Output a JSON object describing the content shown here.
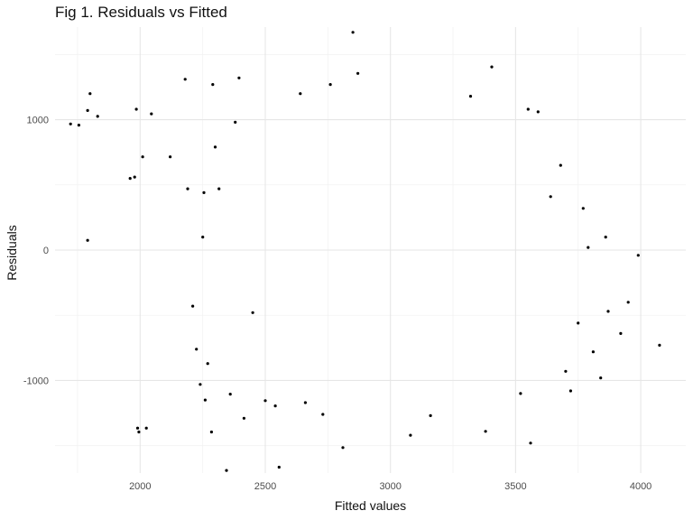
{
  "chart_data": {
    "type": "scatter",
    "title": "Fig 1. Residuals vs Fitted",
    "xlabel": "Fitted values",
    "ylabel": "Residuals",
    "xlim": [
      1660,
      4180
    ],
    "ylim": [
      -1710,
      1710
    ],
    "xticks": [
      2000,
      2500,
      3000,
      3500,
      4000
    ],
    "yticks": [
      -1000,
      0,
      1000
    ],
    "xtick_labels": [
      "2000",
      "2500",
      "3000",
      "3500",
      "4000"
    ],
    "ytick_labels": [
      "-1000",
      "0",
      "1000"
    ],
    "grid": true,
    "point_color": "#000000",
    "points": [
      [
        1722,
        967
      ],
      [
        1755,
        958
      ],
      [
        1790,
        1070
      ],
      [
        1800,
        1200
      ],
      [
        1830,
        1025
      ],
      [
        1790,
        75
      ],
      [
        1960,
        550
      ],
      [
        1978,
        560
      ],
      [
        1985,
        1080
      ],
      [
        2010,
        715
      ],
      [
        2045,
        1045
      ],
      [
        2120,
        715
      ],
      [
        2180,
        1310
      ],
      [
        2190,
        470
      ],
      [
        1990,
        -1365
      ],
      [
        1995,
        -1395
      ],
      [
        2025,
        -1365
      ],
      [
        2210,
        -430
      ],
      [
        2225,
        -760
      ],
      [
        2240,
        -1030
      ],
      [
        2250,
        100
      ],
      [
        2255,
        440
      ],
      [
        2260,
        -1150
      ],
      [
        2270,
        -870
      ],
      [
        2285,
        -1395
      ],
      [
        2290,
        1270
      ],
      [
        2300,
        790
      ],
      [
        2315,
        470
      ],
      [
        2345,
        -1690
      ],
      [
        2360,
        -1105
      ],
      [
        2380,
        980
      ],
      [
        2395,
        1320
      ],
      [
        2415,
        -1290
      ],
      [
        2450,
        -480
      ],
      [
        2500,
        -1155
      ],
      [
        2540,
        -1195
      ],
      [
        2555,
        -1665
      ],
      [
        2640,
        1200
      ],
      [
        2660,
        -1170
      ],
      [
        2730,
        -1260
      ],
      [
        2760,
        1270
      ],
      [
        2810,
        -1515
      ],
      [
        2850,
        1670
      ],
      [
        2870,
        1355
      ],
      [
        3080,
        -1420
      ],
      [
        3160,
        -1270
      ],
      [
        3320,
        1180
      ],
      [
        3380,
        -1390
      ],
      [
        3405,
        1405
      ],
      [
        3520,
        -1100
      ],
      [
        3550,
        1080
      ],
      [
        3560,
        -1480
      ],
      [
        3590,
        1060
      ],
      [
        3680,
        650
      ],
      [
        3720,
        -1080
      ],
      [
        3770,
        320
      ],
      [
        3790,
        20
      ],
      [
        3840,
        -980
      ],
      [
        3860,
        100
      ],
      [
        3870,
        -470
      ],
      [
        3920,
        -640
      ],
      [
        3950,
        -400
      ],
      [
        3990,
        -40
      ],
      [
        4075,
        -730
      ],
      [
        3810,
        -780
      ],
      [
        3750,
        -560
      ],
      [
        3640,
        410
      ],
      [
        3700,
        -930
      ]
    ]
  }
}
